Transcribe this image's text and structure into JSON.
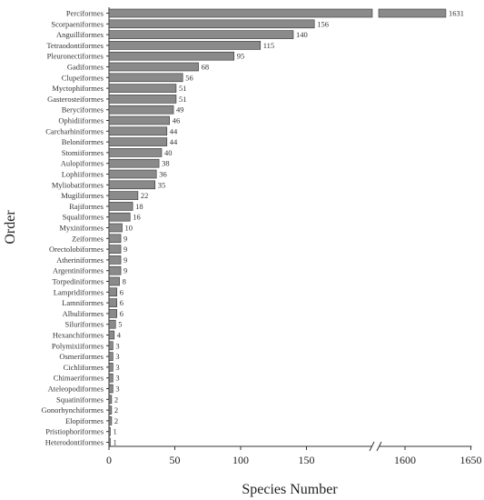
{
  "chart_data": {
    "type": "bar",
    "orientation": "horizontal",
    "xlabel": "Species Number",
    "ylabel": "Order",
    "axis_break": {
      "from": 170,
      "to": 1580
    },
    "x_ticks": [
      "0",
      "50",
      "100",
      "150",
      "1600",
      "1650"
    ],
    "bar_color": "#8a8a8a",
    "categories": [
      "Perciformes",
      "Scorpaeniformes",
      "Anguilliformes",
      "Tetraodontiformes",
      "Pleuronectiformes",
      "Gadiformes",
      "Clupeiformes",
      "Myctophiformes",
      "Gasterosteiformes",
      "Beryciformes",
      "Ophidiiformes",
      "Carcharhiniformes",
      "Beloniformes",
      "Stomiiformes",
      "Aulopiformes",
      "Lophiiformes",
      "Myliobatiformes",
      "Mugiliformes",
      "Rajiformes",
      "Squaliformes",
      "Myxiniformes",
      "Zeiformes",
      "Orectolobiformes",
      "Atheriniformes",
      "Argentiniformes",
      "Torpediniformes",
      "Lampridiformes",
      "Lamniformes",
      "Albuliformes",
      "Siluriformes",
      "Hexanchiformes",
      "Polymixiiformes",
      "Osmeriformes",
      "Cichliformes",
      "Chimaeriformes",
      "Ateleopodiformes",
      "Squatiniformes",
      "Gonorhynchiformes",
      "Elopiformes",
      "Pristiophoriformes",
      "Heterodontiformes"
    ],
    "values": [
      1631,
      156,
      140,
      115,
      95,
      68,
      56,
      51,
      51,
      49,
      46,
      44,
      44,
      40,
      38,
      36,
      35,
      22,
      18,
      16,
      10,
      9,
      9,
      9,
      9,
      8,
      6,
      6,
      6,
      5,
      4,
      3,
      3,
      3,
      3,
      3,
      2,
      2,
      2,
      1,
      1
    ],
    "value_labels": [
      "1631",
      "156",
      "140",
      "115",
      "95",
      "68",
      "56",
      "51",
      "51",
      "49",
      "46",
      "44",
      "44",
      "40",
      "38",
      "36",
      "35",
      "22",
      "18",
      "16",
      "10",
      "9",
      "9",
      "9",
      "9",
      "8",
      "6",
      "6",
      "6",
      "5",
      "4",
      "3",
      "3",
      "3",
      "3",
      "3",
      "2",
      "2",
      "2",
      "1",
      "1"
    ]
  }
}
